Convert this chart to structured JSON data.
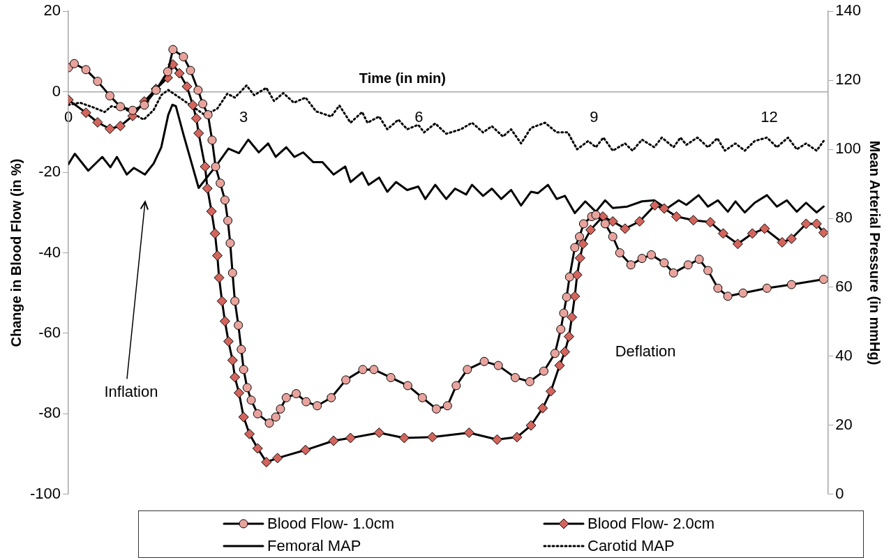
{
  "chart_data": {
    "type": "line",
    "xlabel": "Time (in min)",
    "ylabel": "Change in Blood Flow (in %)",
    "y2label": "Mean Arterial Pressure (in mmHg)",
    "xlim": [
      0,
      13
    ],
    "xticks": [
      0,
      3,
      6,
      9,
      12
    ],
    "ylim": [
      -100,
      20
    ],
    "yticks": [
      -100,
      -80,
      -60,
      -40,
      -20,
      0,
      20
    ],
    "y2lim": [
      0,
      140
    ],
    "y2ticks": [
      0,
      20,
      40,
      60,
      80,
      100,
      120,
      140
    ],
    "grid": false,
    "legend": "bottom",
    "annotations": [
      "Inflation",
      "Deflation"
    ],
    "series": [
      {
        "name": "Blood Flow- 1.0cm",
        "color": "#e8a39d",
        "marker": "circle",
        "line_style": "solid",
        "x": [
          0,
          0.1,
          0.3,
          0.5,
          0.71,
          0.89,
          1.1,
          1.3,
          1.5,
          1.7,
          1.79,
          1.97,
          2.09,
          2.22,
          2.3,
          2.39,
          2.46,
          2.52,
          2.6,
          2.68,
          2.73,
          2.77,
          2.81,
          2.85,
          2.91,
          2.96,
          3.0,
          3.06,
          3.13,
          3.24,
          3.44,
          3.55,
          3.63,
          3.73,
          3.9,
          4.07,
          4.26,
          4.5,
          4.75,
          5.04,
          5.23,
          5.52,
          5.81,
          6.06,
          6.3,
          6.49,
          6.64,
          6.83,
          7.12,
          7.36,
          7.65,
          7.9,
          8.14,
          8.33,
          8.43,
          8.48,
          8.53,
          8.58,
          8.67,
          8.75,
          8.82,
          8.96,
          9.03,
          9.19,
          9.32,
          9.44,
          9.63,
          9.82,
          9.98,
          10.2,
          10.36,
          10.61,
          10.8,
          10.95,
          11.12,
          11.29,
          11.55,
          11.96,
          12.38,
          12.93
        ],
        "values": [
          6,
          7,
          5.5,
          2.6,
          -1,
          -3.7,
          -4.6,
          -3.3,
          0.4,
          5,
          10.5,
          8.7,
          5.3,
          0.4,
          -3,
          -5.7,
          -12,
          -18.6,
          -22.7,
          -26.9,
          -32,
          -37.6,
          -45,
          -52,
          -58,
          -64,
          -69,
          -73.5,
          -76.6,
          -80,
          -82.3,
          -80.8,
          -78.8,
          -76,
          -75,
          -77,
          -78,
          -76,
          -71.6,
          -69,
          -69,
          -71,
          -73,
          -76,
          -78.8,
          -78,
          -73,
          -69,
          -67,
          -68,
          -71,
          -72,
          -69.4,
          -65,
          -59,
          -55,
          -51,
          -46,
          -38.7,
          -36,
          -32.8,
          -31,
          -30.6,
          -32.8,
          -36,
          -40,
          -43,
          -41.4,
          -40.5,
          -42.5,
          -45,
          -43,
          -41.6,
          -44.4,
          -48.8,
          -50.8,
          -50,
          -48.8,
          -47.9,
          -46.6
        ]
      },
      {
        "name": "Blood Flow- 2.0cm",
        "color": "#d2655d",
        "marker": "diamond",
        "line_style": "solid",
        "x": [
          0,
          0.3,
          0.5,
          0.71,
          0.89,
          1.1,
          1.3,
          1.5,
          1.7,
          1.79,
          1.9,
          2.03,
          2.13,
          2.19,
          2.23,
          2.34,
          2.38,
          2.45,
          2.51,
          2.55,
          2.58,
          2.63,
          2.68,
          2.74,
          2.81,
          2.85,
          2.92,
          3.0,
          3.1,
          3.24,
          3.39,
          3.58,
          4.06,
          4.54,
          4.83,
          5.32,
          5.75,
          6.23,
          6.86,
          7.34,
          7.68,
          7.92,
          8.12,
          8.26,
          8.41,
          8.5,
          8.57,
          8.62,
          8.67,
          8.71,
          8.76,
          8.81,
          8.94,
          9.15,
          9.32,
          9.53,
          9.78,
          10.04,
          10.2,
          10.41,
          10.7,
          10.99,
          11.21,
          11.46,
          11.71,
          11.92,
          12.22,
          12.38,
          12.63,
          12.81,
          12.93
        ],
        "values": [
          -2,
          -5.2,
          -7.6,
          -9.2,
          -8.5,
          -6,
          -2.4,
          0.7,
          3.5,
          6.8,
          4.6,
          1.3,
          -3.3,
          -6.6,
          -10.3,
          -18.6,
          -24,
          -29.7,
          -35.2,
          -40.7,
          -46.2,
          -52,
          -57,
          -62,
          -66.7,
          -70.9,
          -74.8,
          -80.8,
          -85,
          -88.6,
          -92,
          -91,
          -89,
          -86.7,
          -86,
          -84.7,
          -86,
          -85.8,
          -84.7,
          -86.4,
          -85.8,
          -82.9,
          -78.6,
          -74.4,
          -68,
          -64.6,
          -60.8,
          -56,
          -50.8,
          -45.5,
          -41.3,
          -37.8,
          -34.3,
          -31,
          -32.2,
          -34,
          -32.2,
          -28.2,
          -29,
          -31,
          -31.9,
          -32.4,
          -35.2,
          -37.8,
          -35.2,
          -34,
          -37.4,
          -36.5,
          -32.8,
          -32.8,
          -35
        ]
      },
      {
        "name": "Femoral MAP",
        "color": "#000000",
        "axis": "y2",
        "marker": "none",
        "line_style": "solid",
        "x": [
          0,
          0.11,
          0.34,
          0.58,
          0.72,
          0.83,
          1.0,
          1.12,
          1.31,
          1.46,
          1.59,
          1.71,
          1.78,
          1.84,
          1.97,
          2.23,
          2.38,
          2.55,
          2.74,
          2.92,
          3.08,
          3.26,
          3.42,
          3.55,
          3.73,
          3.87,
          4.02,
          4.19,
          4.35,
          4.54,
          4.74,
          4.83,
          5.03,
          5.14,
          5.32,
          5.46,
          5.61,
          5.8,
          5.99,
          6.11,
          6.28,
          6.47,
          6.62,
          6.81,
          6.91,
          7.1,
          7.25,
          7.41,
          7.58,
          7.75,
          7.92,
          8.04,
          8.21,
          8.36,
          8.5,
          8.67,
          8.85,
          9.03,
          9.19,
          9.32,
          9.57,
          9.82,
          10.03,
          10.24,
          10.45,
          10.58,
          10.79,
          10.95,
          11.12,
          11.29,
          11.42,
          11.58,
          11.75,
          11.96,
          12.13,
          12.3,
          12.47,
          12.63,
          12.81,
          12.93
        ],
        "values": [
          95.7,
          98.7,
          93.8,
          97.8,
          94.8,
          97.8,
          92.7,
          94.6,
          92.7,
          95.9,
          100.6,
          110,
          112.9,
          112.5,
          104.3,
          88.8,
          92,
          95.7,
          100.2,
          98.9,
          102.8,
          99.1,
          101.7,
          97.8,
          100.6,
          97.8,
          99.1,
          96.3,
          96.3,
          92.7,
          95,
          90.5,
          93.3,
          89.7,
          91.8,
          87.7,
          90.5,
          88.2,
          89.2,
          85.6,
          89.7,
          85.6,
          88.6,
          86.9,
          89.7,
          86.5,
          88.6,
          85.6,
          88.2,
          83.7,
          87.7,
          87.3,
          89.7,
          85.6,
          86.5,
          81.5,
          84.9,
          81.9,
          85.2,
          83,
          83.4,
          84.9,
          85.2,
          82.8,
          85.2,
          83.9,
          86.7,
          83.4,
          85.2,
          81.9,
          84.9,
          81.7,
          84.5,
          86.7,
          83.4,
          85.2,
          81.9,
          84.5,
          81.7,
          83.4
        ]
      },
      {
        "name": "Carotid MAP",
        "color": "#000000",
        "axis": "y2",
        "marker": "none",
        "line_style": "dotted",
        "x": [
          0,
          0.2,
          0.45,
          0.62,
          0.74,
          0.87,
          1.0,
          1.29,
          1.46,
          1.59,
          1.71,
          2.34,
          2.55,
          2.72,
          2.85,
          3.05,
          3.18,
          3.39,
          3.52,
          3.68,
          3.86,
          4.06,
          4.24,
          4.5,
          4.64,
          4.83,
          5.03,
          5.12,
          5.32,
          5.46,
          5.65,
          5.8,
          5.99,
          6.09,
          6.28,
          6.47,
          6.72,
          6.91,
          7.1,
          7.25,
          7.44,
          7.58,
          7.75,
          7.92,
          8.16,
          8.36,
          8.55,
          8.71,
          8.9,
          9.03,
          9.16,
          9.32,
          9.53,
          9.66,
          9.82,
          10.03,
          10.16,
          10.36,
          10.48,
          10.58,
          10.77,
          10.95,
          11.11,
          11.24,
          11.42,
          11.58,
          11.75,
          11.96,
          12.13,
          12.32,
          12.47,
          12.63,
          12.81,
          12.93
        ],
        "values": [
          112.9,
          113.5,
          112,
          110.8,
          112.5,
          112,
          111.4,
          108.6,
          111.4,
          115.7,
          117.2,
          109.9,
          111.8,
          116.1,
          115,
          118.5,
          115.7,
          117.8,
          114,
          116.3,
          113.5,
          115,
          111,
          109.5,
          112.7,
          107.7,
          110.8,
          107.7,
          109.5,
          105.8,
          108.6,
          105.8,
          107.1,
          104.9,
          107.5,
          104.5,
          105.8,
          107.7,
          104.9,
          106.7,
          103.7,
          105.8,
          101.7,
          106.2,
          107.7,
          104.9,
          104.9,
          100,
          102.4,
          100.6,
          103.4,
          99.6,
          101.7,
          99.6,
          102.8,
          100.6,
          103.4,
          100.6,
          103.4,
          101.3,
          103.4,
          100.6,
          103.2,
          99.6,
          101.7,
          99.6,
          102.4,
          103.4,
          100.6,
          103.4,
          100,
          101.7,
          99.6,
          102.4
        ]
      }
    ]
  }
}
